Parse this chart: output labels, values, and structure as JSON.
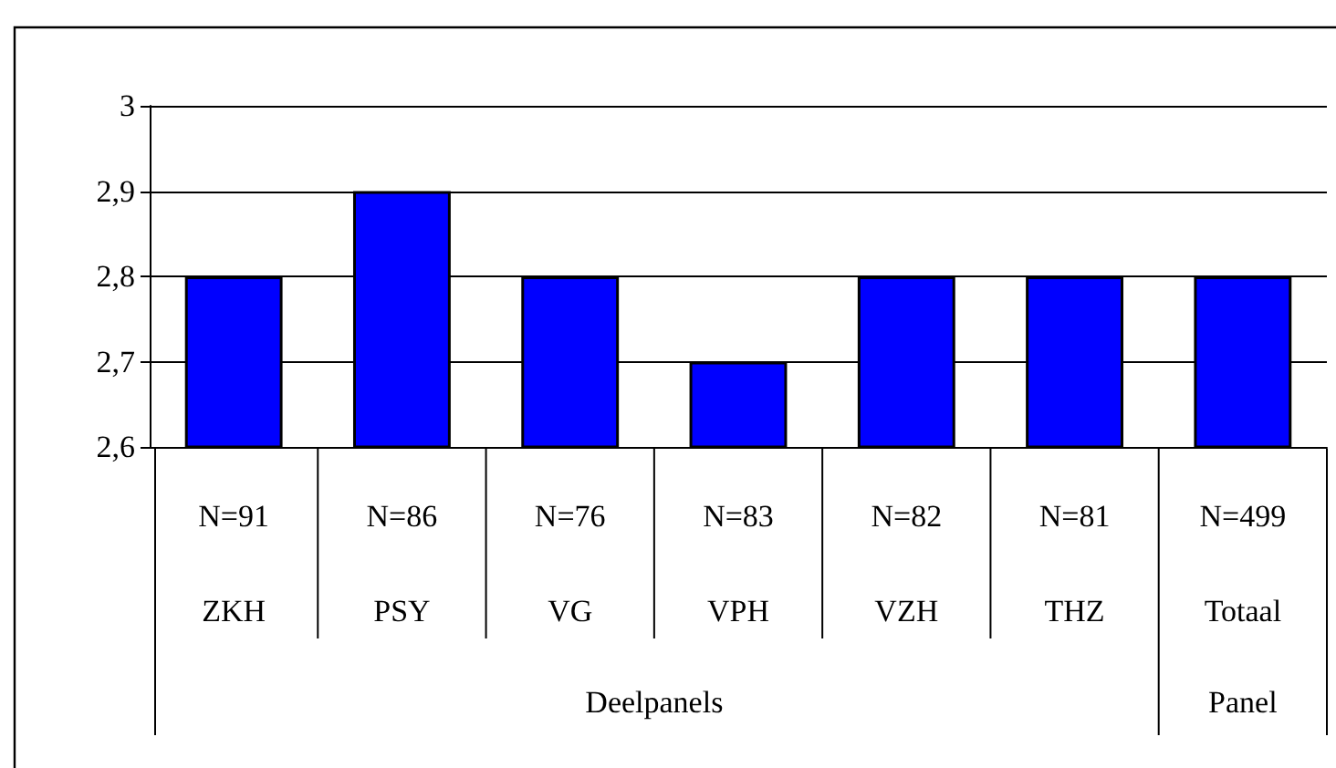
{
  "chart_data": {
    "type": "bar",
    "categories": [
      "N=91\nZKH",
      "N=86\nPSY",
      "N=76\nVG",
      "N=83\nVPH",
      "N=82\nVZH",
      "N=81\nTHZ",
      "N=499\nTotaal"
    ],
    "values": [
      2.8,
      2.9,
      2.8,
      2.7,
      2.8,
      2.8,
      2.8
    ],
    "color": "#0000ff",
    "ylim": [
      2.6,
      3
    ],
    "yticks": [
      {
        "value": 2.6,
        "label": "2,6"
      },
      {
        "value": 2.7,
        "label": "2,7"
      },
      {
        "value": 2.8,
        "label": "2,8"
      },
      {
        "value": 2.9,
        "label": "2,9"
      },
      3
    ],
    "annotations": [
      "Deelpanels",
      "Panel"
    ],
    "grid": "y"
  }
}
